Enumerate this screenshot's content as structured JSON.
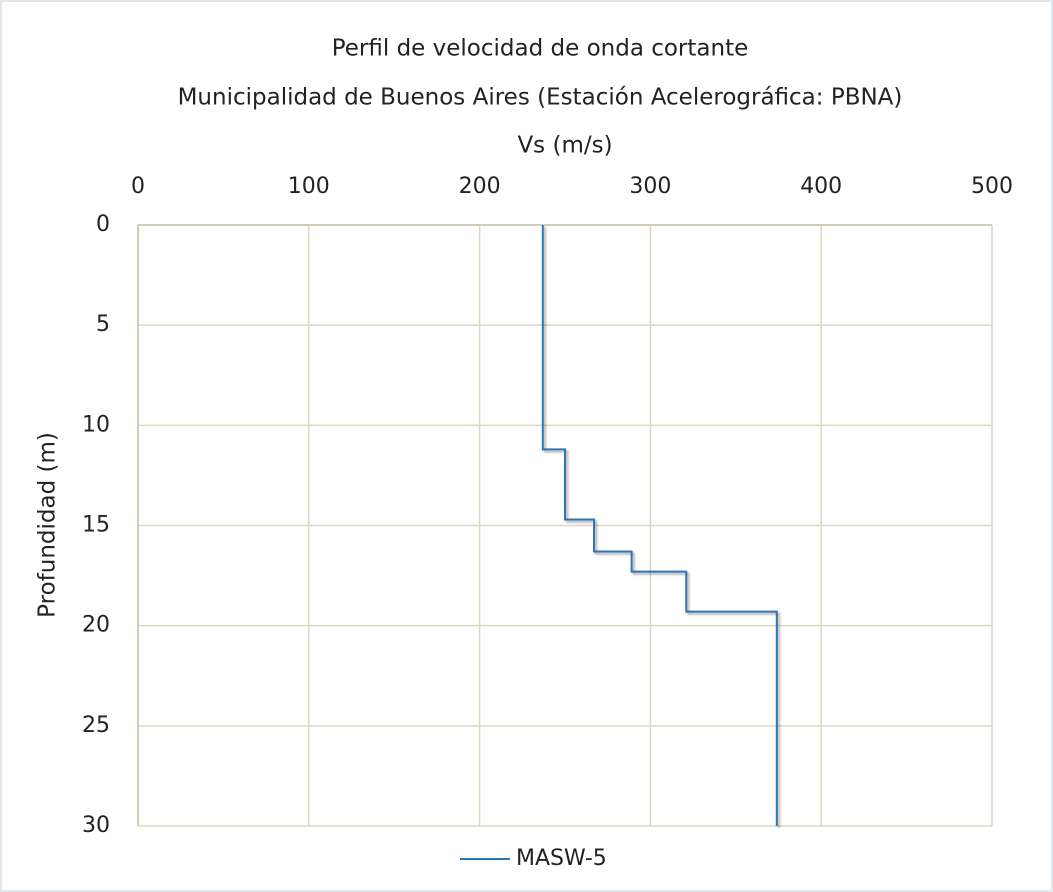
{
  "chart_data": {
    "type": "line",
    "title": "Perfil de velocidad de onda cortante",
    "subtitle": "Municipalidad de Buenos Aires (Estación Acelerográfica: PBNA)",
    "x_label": "Vs (m/s)",
    "y_label": "Profundidad (m)",
    "series": [
      {
        "name": "MASW-5",
        "color": "#2e75b6",
        "x": [
          237,
          237,
          250,
          250,
          267,
          267,
          289,
          289,
          321,
          321,
          374,
          374
        ],
        "values": [
          0,
          11.2,
          11.2,
          14.7,
          14.7,
          16.3,
          16.3,
          17.3,
          17.3,
          19.3,
          19.3,
          30
        ]
      }
    ],
    "xlim": [
      0,
      500
    ],
    "xticks": [
      0,
      100,
      200,
      300,
      400,
      500
    ],
    "ylim": [
      0,
      30
    ],
    "yticks": [
      0,
      5,
      10,
      15,
      20,
      25,
      30
    ],
    "y_inverted": true,
    "x_axis_position": "top",
    "grid": true,
    "legend_position": "bottom"
  }
}
